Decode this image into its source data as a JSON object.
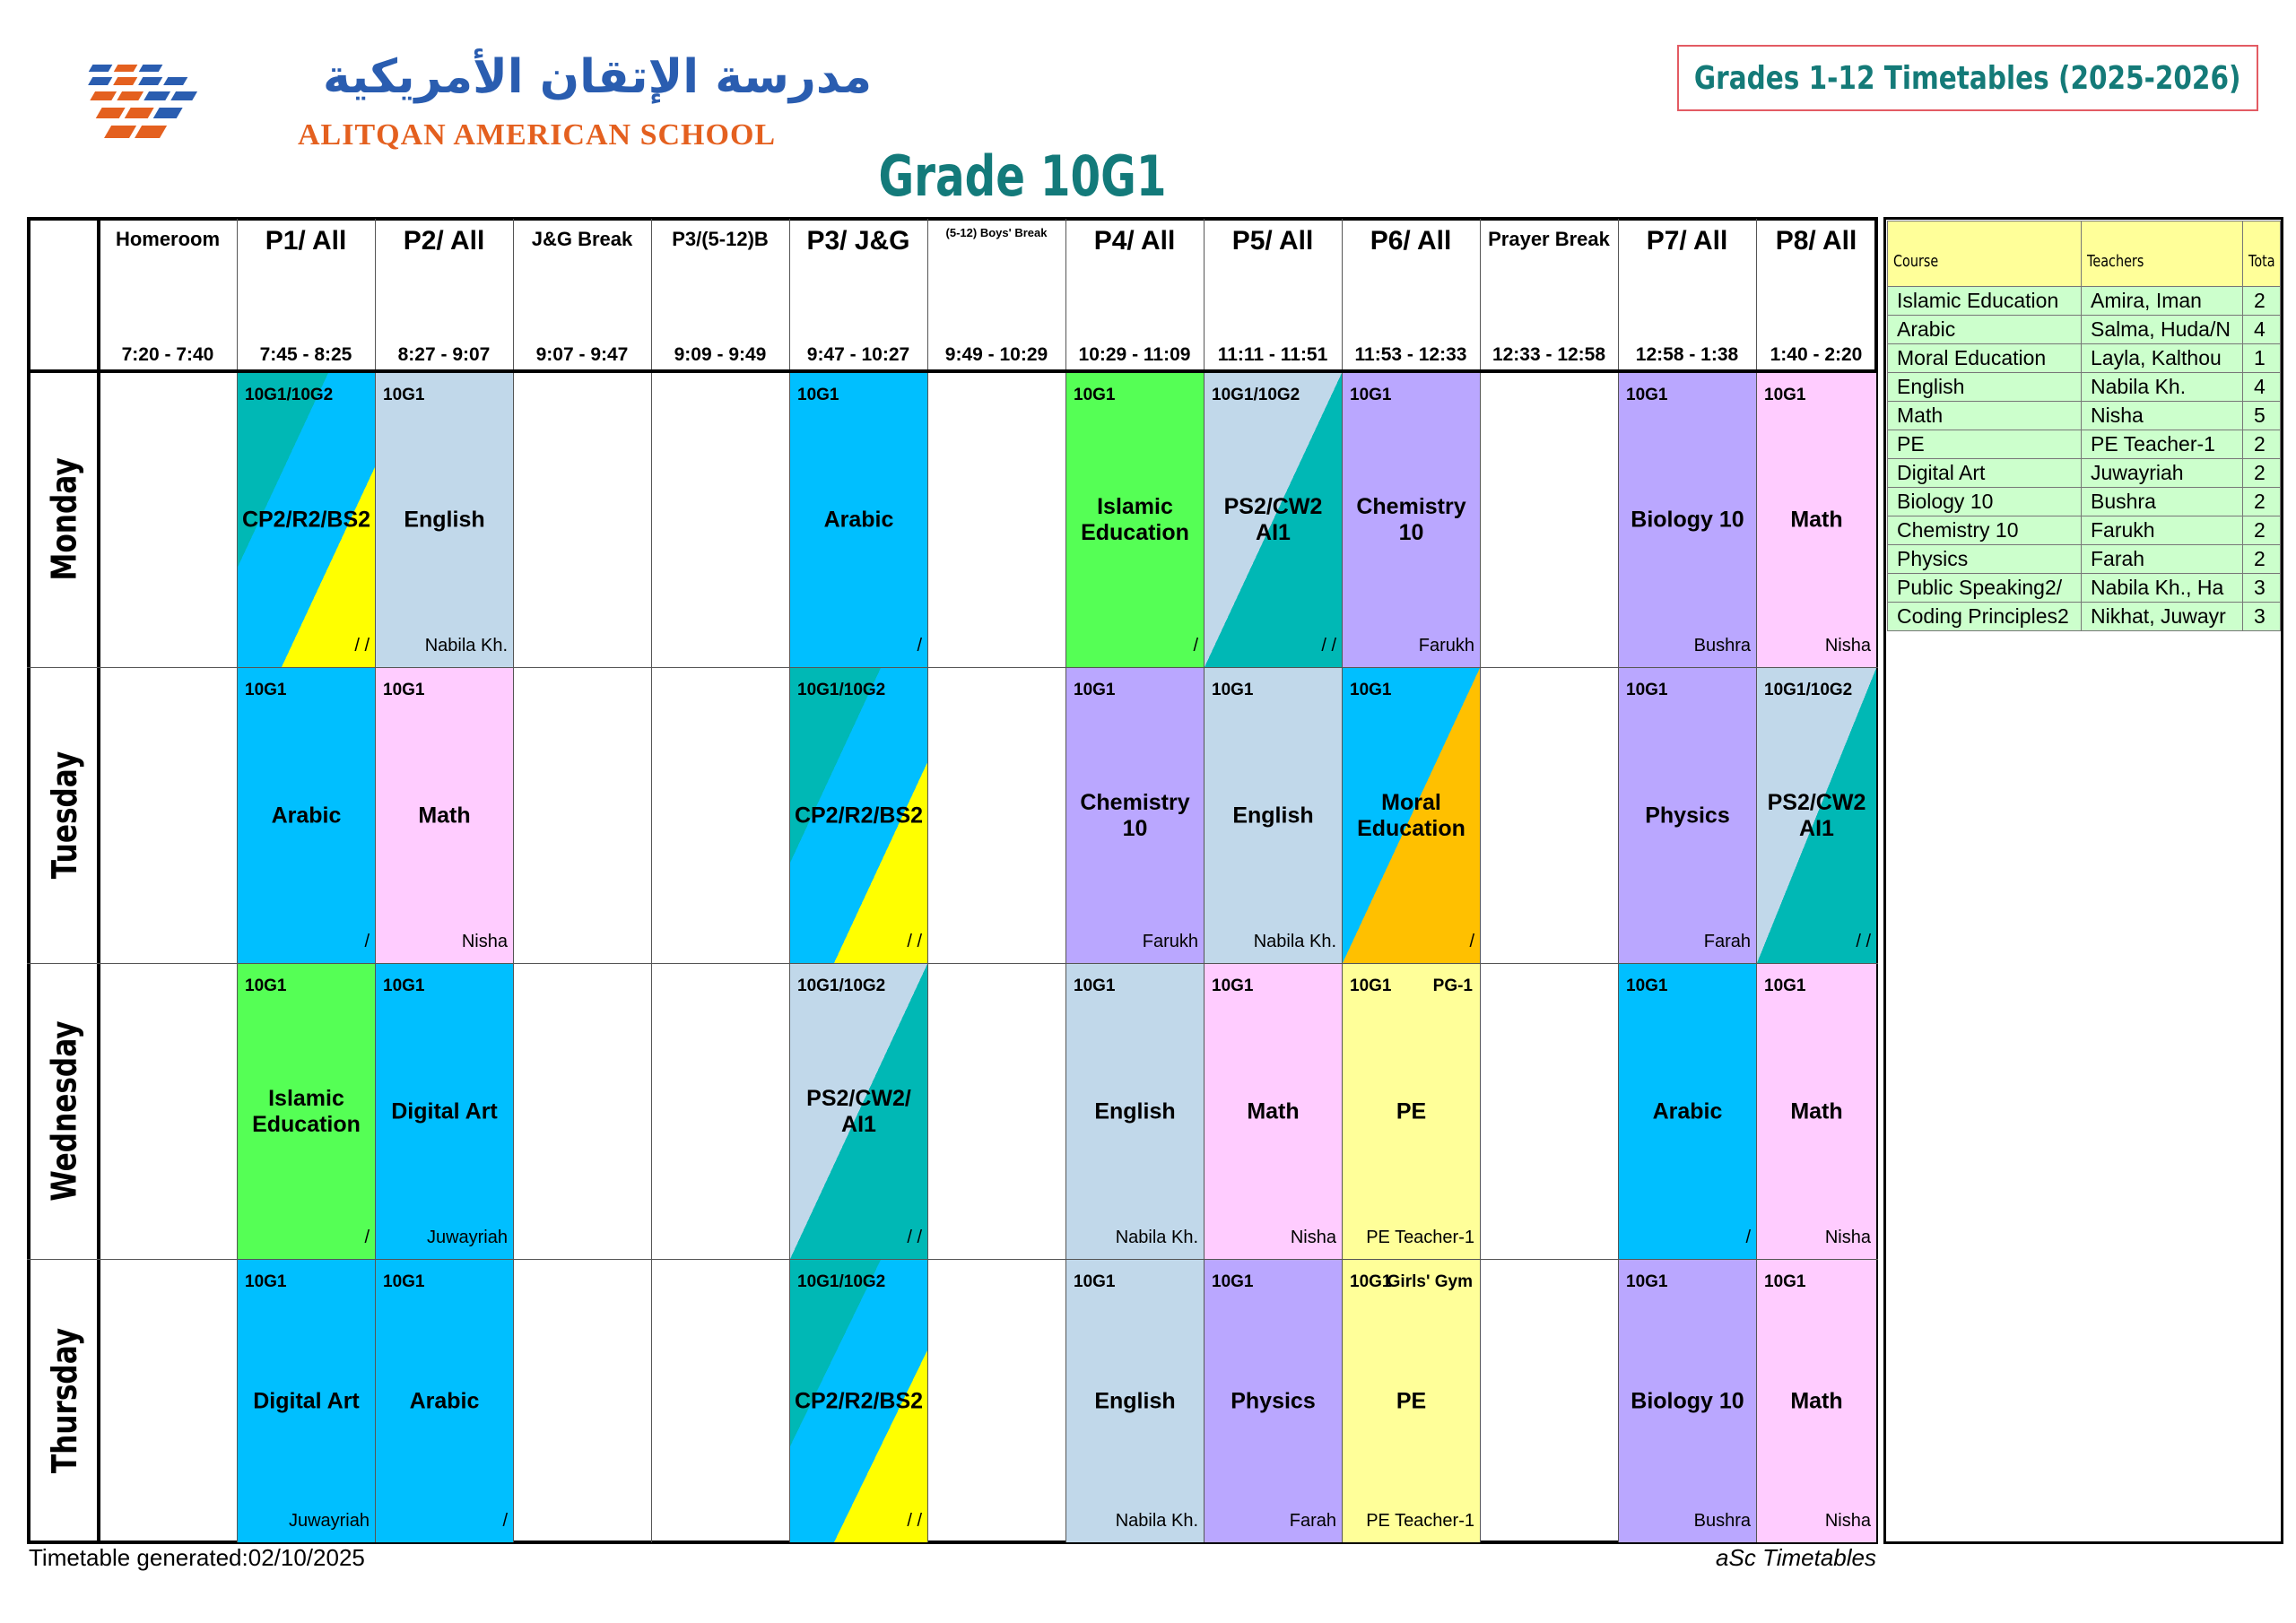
{
  "header": {
    "school_name_arabic": "مدرسة الإتقان الأمريكية",
    "school_name_english": "ALITQAN AMERICAN SCHOOL",
    "timetable_title": "Grades 1-12 Timetables (2025-2026)",
    "grade_title": "Grade 10G1"
  },
  "periods": [
    {
      "name": "Homeroom",
      "time": "7:20 - 7:40"
    },
    {
      "name": "P1/ All",
      "time": "7:45 - 8:25"
    },
    {
      "name": "P2/ All",
      "time": "8:27 - 9:07"
    },
    {
      "name": "J&G Break",
      "time": "9:07 - 9:47"
    },
    {
      "name": "P3/(5-12)B",
      "time": "9:09 - 9:49"
    },
    {
      "name": "P3/ J&G",
      "time": "9:47 - 10:27"
    },
    {
      "name": "(5-12) Boys' Break",
      "time": "9:49 - 10:29"
    },
    {
      "name": "P4/ All",
      "time": "10:29 - 11:09"
    },
    {
      "name": "P5/ All",
      "time": "11:11 - 11:51"
    },
    {
      "name": "P6/ All",
      "time": "11:53 - 12:33"
    },
    {
      "name": "Prayer Break",
      "time": "12:33 - 12:58"
    },
    {
      "name": "P7/ All",
      "time": "12:58 - 1:38"
    },
    {
      "name": "P8/ All",
      "time": "1:40 - 2:20"
    }
  ],
  "days": [
    "Monday",
    "Tuesday",
    "Wednesday",
    "Thursday"
  ],
  "lessons": [
    {
      "day": 0,
      "col": 1,
      "group": "10G1/10G2",
      "subject": "CP2/R2/BS2",
      "teacher": "/ /",
      "colors": [
        "#00b8b5",
        "#00bfff",
        "#ffff00"
      ]
    },
    {
      "day": 0,
      "col": 2,
      "group": "10G1",
      "subject": "English",
      "teacher": "Nabila Kh.",
      "colors": [
        "#c1d8ea"
      ]
    },
    {
      "day": 0,
      "col": 5,
      "group": "10G1",
      "subject": "Arabic",
      "teacher": "/",
      "colors": [
        "#00bfff"
      ]
    },
    {
      "day": 0,
      "col": 7,
      "group": "10G1",
      "subject": "Islamic\nEducation",
      "teacher": "/",
      "colors": [
        "#55ff55"
      ]
    },
    {
      "day": 0,
      "col": 8,
      "group": "10G1/10G2",
      "subject": "PS2/CW2\nAI1",
      "teacher": "/ /",
      "colors": [
        "#c1d8ea",
        "#00b8b5"
      ]
    },
    {
      "day": 0,
      "col": 9,
      "group": "10G1",
      "subject": "Chemistry\n10",
      "teacher": "Farukh",
      "colors": [
        "#baa7ff"
      ]
    },
    {
      "day": 0,
      "col": 11,
      "group": "10G1",
      "subject": "Biology 10",
      "teacher": "Bushra",
      "colors": [
        "#baa7ff"
      ]
    },
    {
      "day": 0,
      "col": 12,
      "group": "10G1",
      "subject": "Math",
      "teacher": "Nisha",
      "colors": [
        "#ffccff"
      ]
    },
    {
      "day": 1,
      "col": 1,
      "group": "10G1",
      "subject": "Arabic",
      "teacher": "/",
      "colors": [
        "#00bfff"
      ]
    },
    {
      "day": 1,
      "col": 2,
      "group": "10G1",
      "subject": "Math",
      "teacher": "Nisha",
      "colors": [
        "#ffccff"
      ]
    },
    {
      "day": 1,
      "col": 5,
      "group": "10G1/10G2",
      "subject": "CP2/R2/BS2",
      "teacher": "/ /",
      "colors": [
        "#00b8b5",
        "#00bfff",
        "#ffff00"
      ]
    },
    {
      "day": 1,
      "col": 7,
      "group": "10G1",
      "subject": "Chemistry\n10",
      "teacher": "Farukh",
      "colors": [
        "#baa7ff"
      ]
    },
    {
      "day": 1,
      "col": 8,
      "group": "10G1",
      "subject": "English",
      "teacher": "Nabila Kh.",
      "colors": [
        "#c1d8ea"
      ]
    },
    {
      "day": 1,
      "col": 9,
      "group": "10G1",
      "subject": "Moral\nEducation",
      "teacher": "/",
      "colors": [
        "#00bfff",
        "#ffc000"
      ]
    },
    {
      "day": 1,
      "col": 11,
      "group": "10G1",
      "subject": "Physics",
      "teacher": "Farah",
      "colors": [
        "#baa7ff"
      ]
    },
    {
      "day": 1,
      "col": 12,
      "group": "10G1/10G2",
      "subject": "PS2/CW2\nAI1",
      "teacher": "/ /",
      "colors": [
        "#c1d8ea",
        "#00b8b5"
      ]
    },
    {
      "day": 2,
      "col": 1,
      "group": "10G1",
      "subject": "Islamic\nEducation",
      "teacher": "/",
      "colors": [
        "#55ff55"
      ]
    },
    {
      "day": 2,
      "col": 2,
      "group": "10G1",
      "subject": "Digital Art",
      "teacher": "Juwayriah",
      "colors": [
        "#00bfff"
      ]
    },
    {
      "day": 2,
      "col": 5,
      "group": "10G1/10G2",
      "subject": "PS2/CW2/\nAI1",
      "teacher": "/ /",
      "colors": [
        "#c1d8ea",
        "#00b8b5"
      ]
    },
    {
      "day": 2,
      "col": 7,
      "group": "10G1",
      "subject": "English",
      "teacher": "Nabila Kh.",
      "colors": [
        "#c1d8ea"
      ]
    },
    {
      "day": 2,
      "col": 8,
      "group": "10G1",
      "subject": "Math",
      "teacher": "Nisha",
      "colors": [
        "#ffccff"
      ]
    },
    {
      "day": 2,
      "col": 9,
      "group": "10G1",
      "room": "PG-1",
      "subject": "PE",
      "teacher": "PE Teacher-1",
      "colors": [
        "#ffff99"
      ]
    },
    {
      "day": 2,
      "col": 11,
      "group": "10G1",
      "subject": "Arabic",
      "teacher": "/",
      "colors": [
        "#00bfff"
      ]
    },
    {
      "day": 2,
      "col": 12,
      "group": "10G1",
      "subject": "Math",
      "teacher": "Nisha",
      "colors": [
        "#ffccff"
      ]
    },
    {
      "day": 3,
      "col": 1,
      "group": "10G1",
      "subject": "Digital Art",
      "teacher": "Juwayriah",
      "colors": [
        "#00bfff"
      ]
    },
    {
      "day": 3,
      "col": 2,
      "group": "10G1",
      "subject": "Arabic",
      "teacher": "/",
      "colors": [
        "#00bfff"
      ]
    },
    {
      "day": 3,
      "col": 5,
      "group": "10G1/10G2",
      "subject": "CP2/R2/BS2",
      "teacher": "/ /",
      "colors": [
        "#00b8b5",
        "#00bfff",
        "#ffff00"
      ]
    },
    {
      "day": 3,
      "col": 7,
      "group": "10G1",
      "subject": "English",
      "teacher": "Nabila Kh.",
      "colors": [
        "#c1d8ea"
      ]
    },
    {
      "day": 3,
      "col": 8,
      "group": "10G1",
      "subject": "Physics",
      "teacher": "Farah",
      "colors": [
        "#baa7ff"
      ]
    },
    {
      "day": 3,
      "col": 9,
      "group": "10G1",
      "room": "Girls' Gym",
      "subject": "PE",
      "teacher": "PE Teacher-1",
      "colors": [
        "#ffff99"
      ]
    },
    {
      "day": 3,
      "col": 11,
      "group": "10G1",
      "subject": "Biology 10",
      "teacher": "Bushra",
      "colors": [
        "#baa7ff"
      ]
    },
    {
      "day": 3,
      "col": 12,
      "group": "10G1",
      "subject": "Math",
      "teacher": "Nisha",
      "colors": [
        "#ffccff"
      ]
    }
  ],
  "summary": {
    "headers": [
      "Course",
      "Teachers",
      "Tota"
    ],
    "rows": [
      [
        "Islamic Education",
        "Amira, Iman",
        "2"
      ],
      [
        "Arabic",
        "Salma, Huda/N",
        "4"
      ],
      [
        "Moral Education",
        "Layla, Kalthou",
        "1"
      ],
      [
        "English",
        "Nabila Kh.",
        "4"
      ],
      [
        "Math",
        "Nisha",
        "5"
      ],
      [
        "PE",
        "PE Teacher-1",
        "2"
      ],
      [
        "Digital Art",
        "Juwayriah",
        "2"
      ],
      [
        "Biology 10",
        "Bushra",
        "2"
      ],
      [
        "Chemistry 10",
        "Farukh",
        "2"
      ],
      [
        "Physics",
        "Farah",
        "2"
      ],
      [
        "Public Speaking2/",
        "Nabila Kh., Ha",
        "3"
      ],
      [
        "Coding Principles2",
        "Nikhat, Juwayr",
        "3"
      ]
    ]
  },
  "footer": {
    "generated": "Timetable generated:02/10/2025",
    "software": "aSc Timetables"
  }
}
